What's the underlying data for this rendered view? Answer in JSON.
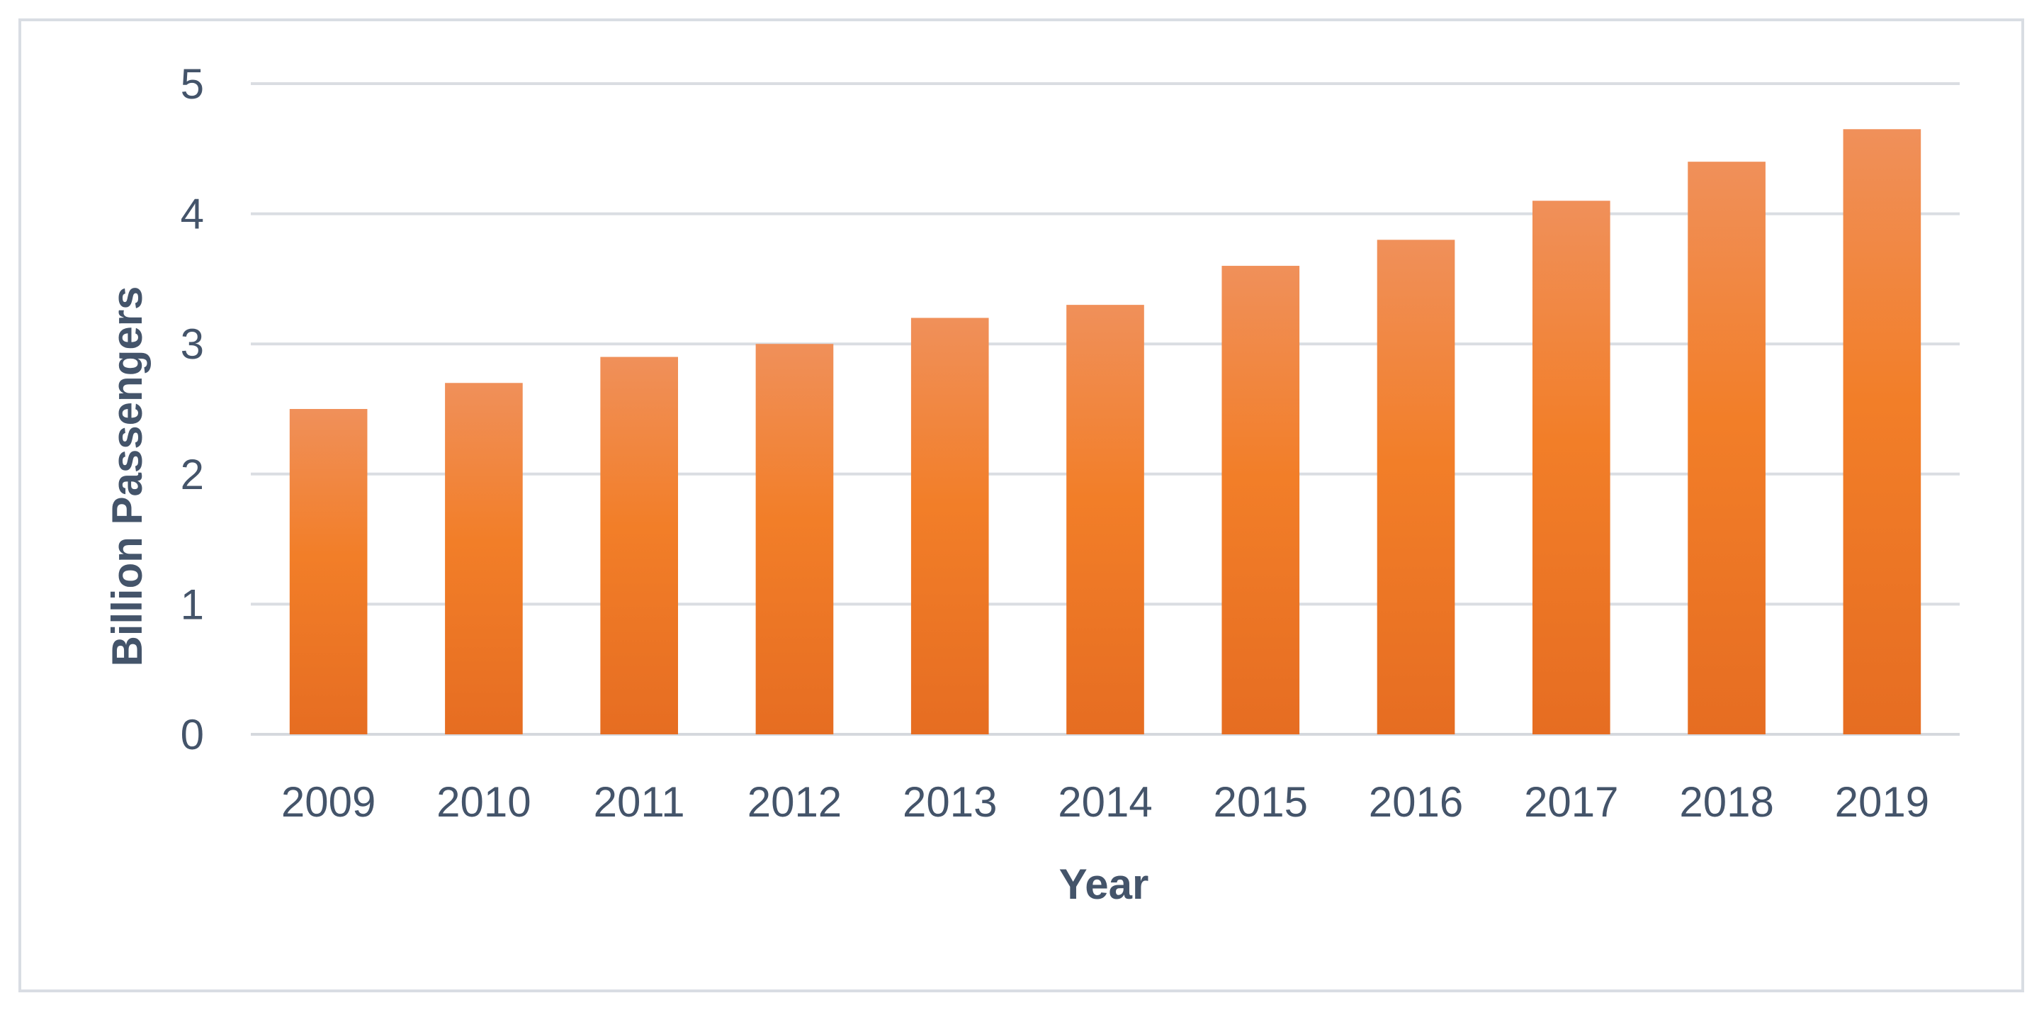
{
  "chart_data": {
    "type": "bar",
    "categories": [
      "2009",
      "2010",
      "2011",
      "2012",
      "2013",
      "2014",
      "2015",
      "2016",
      "2017",
      "2018",
      "2019"
    ],
    "values": [
      2.5,
      2.7,
      2.9,
      3.0,
      3.2,
      3.3,
      3.6,
      3.8,
      4.1,
      4.4,
      4.65
    ],
    "title": "",
    "xlabel": "Year",
    "ylabel": "Billion Passengers",
    "ylim": [
      0,
      5
    ],
    "yticks": [
      "0",
      "1",
      "2",
      "3",
      "4",
      "5"
    ],
    "grid": true,
    "legend": "none",
    "colors": {
      "bar_top": "#f0905a",
      "bar_mid": "#f27e28",
      "bar_bottom": "#e66d22",
      "text": "#44546a",
      "grid": "#dadde2"
    }
  }
}
